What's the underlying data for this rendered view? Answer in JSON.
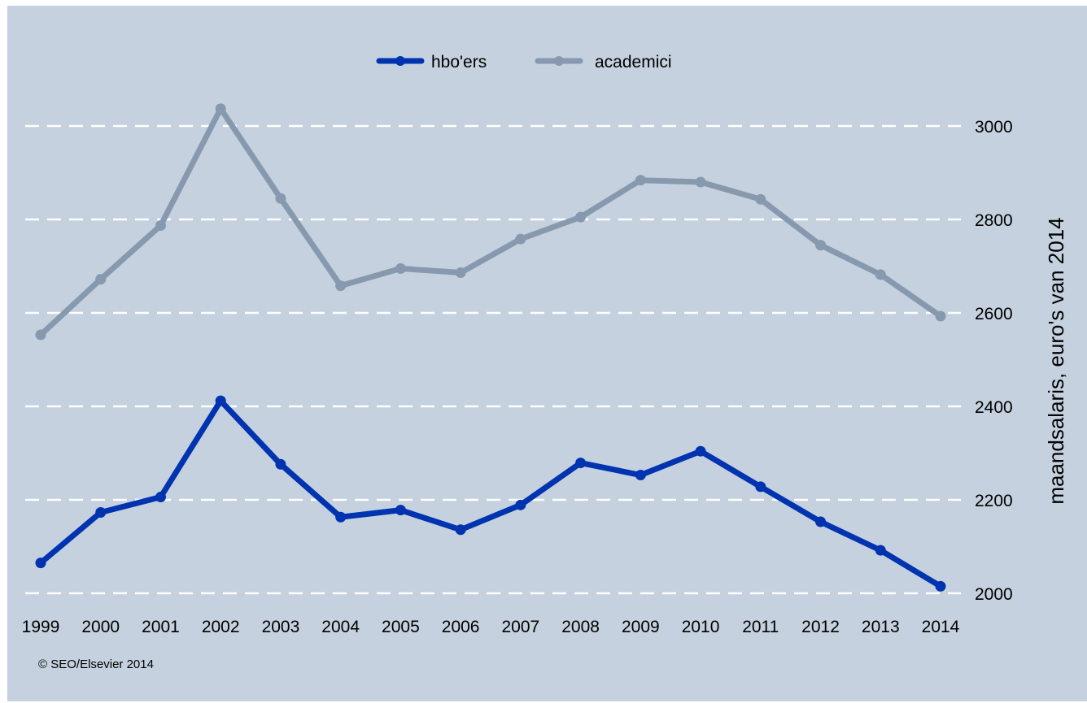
{
  "chart_data": {
    "type": "line",
    "title": "",
    "xlabel": "",
    "ylabel": "maandsalaris, euro's van 2014",
    "x": [
      "1999",
      "2000",
      "2001",
      "2002",
      "2003",
      "2004",
      "2005",
      "2006",
      "2007",
      "2008",
      "2009",
      "2010",
      "2011",
      "2012",
      "2013",
      "2014"
    ],
    "ylim": [
      2000,
      3000
    ],
    "yticks": [
      "2000",
      "2200",
      "2400",
      "2600",
      "2800",
      "3000"
    ],
    "grid": "horizontal dashed",
    "legend_position": "top-center",
    "series": [
      {
        "name": "hbo'ers",
        "color": "#0033b0",
        "values": [
          2065,
          2173,
          2206,
          2412,
          2276,
          2163,
          2178,
          2136,
          2189,
          2279,
          2253,
          2304,
          2228,
          2153,
          2092,
          2015
        ]
      },
      {
        "name": "academici",
        "color": "#8799ae",
        "values": [
          2553,
          2672,
          2787,
          3037,
          2845,
          2658,
          2695,
          2686,
          2758,
          2805,
          2884,
          2880,
          2843,
          2745,
          2682,
          2593
        ]
      }
    ],
    "source_note": "© SEO/Elsevier 2014"
  },
  "colors": {
    "background": "#c5d1de",
    "grid": "#ffffff"
  }
}
